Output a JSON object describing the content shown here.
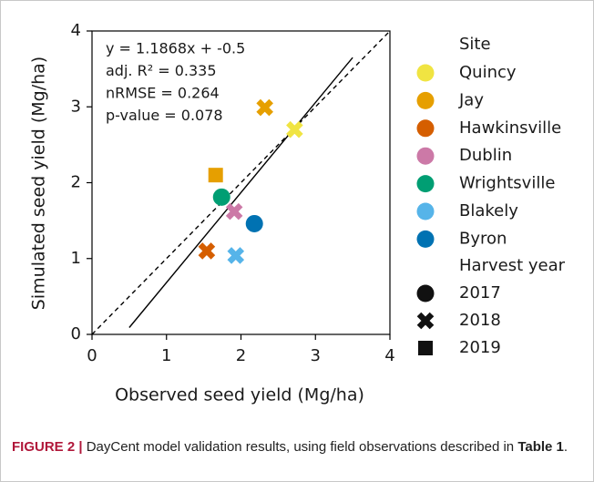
{
  "chart_data": {
    "type": "scatter",
    "xlabel": "Observed seed yield (Mg/ha)",
    "ylabel": "Simulated seed yield (Mg/ha)",
    "xlim": [
      0,
      4
    ],
    "xticks": [
      0,
      1,
      2,
      3,
      4
    ],
    "ylim": [
      0,
      4
    ],
    "yticks": [
      0,
      1,
      2,
      3,
      4
    ],
    "annotations": [
      "y = 1.1868x + -0.5",
      "adj. R² = 0.335",
      "nRMSE = 0.264",
      "p-value = 0.078"
    ],
    "fit_line": {
      "x": [
        0.5,
        3.5
      ],
      "y": [
        0.09,
        3.65
      ],
      "color": "#000000"
    },
    "identity_line": {
      "x": [
        0,
        4
      ],
      "y": [
        0,
        4
      ],
      "color": "#000000"
    },
    "legend_title": "Site",
    "series": [
      {
        "name": "Quincy",
        "color": "#f0e442",
        "x": [
          2.72
        ],
        "y": [
          2.7
        ],
        "markers": [
          "x"
        ]
      },
      {
        "name": "Jay",
        "color": "#e69f00",
        "x": [
          2.32,
          1.66
        ],
        "y": [
          2.99,
          2.1
        ],
        "markers": [
          "x",
          "square"
        ]
      },
      {
        "name": "Hawkinsville",
        "color": "#d55e00",
        "x": [
          1.54
        ],
        "y": [
          1.1
        ],
        "markers": [
          "x"
        ]
      },
      {
        "name": "Dublin",
        "color": "#cc79a7",
        "x": [
          1.91
        ],
        "y": [
          1.62
        ],
        "markers": [
          "x"
        ]
      },
      {
        "name": "Wrightsville",
        "color": "#009e73",
        "x": [
          1.74
        ],
        "y": [
          1.81
        ],
        "markers": [
          "circle"
        ]
      },
      {
        "name": "Blakely",
        "color": "#56b4e9",
        "x": [
          1.93
        ],
        "y": [
          1.04
        ],
        "markers": [
          "x"
        ]
      },
      {
        "name": "Byron",
        "color": "#0072b2",
        "x": [
          2.18
        ],
        "y": [
          1.46
        ],
        "markers": [
          "circle"
        ]
      }
    ],
    "year_legend_title": "Harvest year",
    "years": [
      {
        "name": "2017",
        "marker": "circle"
      },
      {
        "name": "2018",
        "marker": "x"
      },
      {
        "name": "2019",
        "marker": "square"
      }
    ]
  },
  "caption": {
    "label": "FIGURE 2 |",
    "text": " DayCent model validation results, using field observations described in ",
    "ref": "Table 1",
    "end": "."
  }
}
